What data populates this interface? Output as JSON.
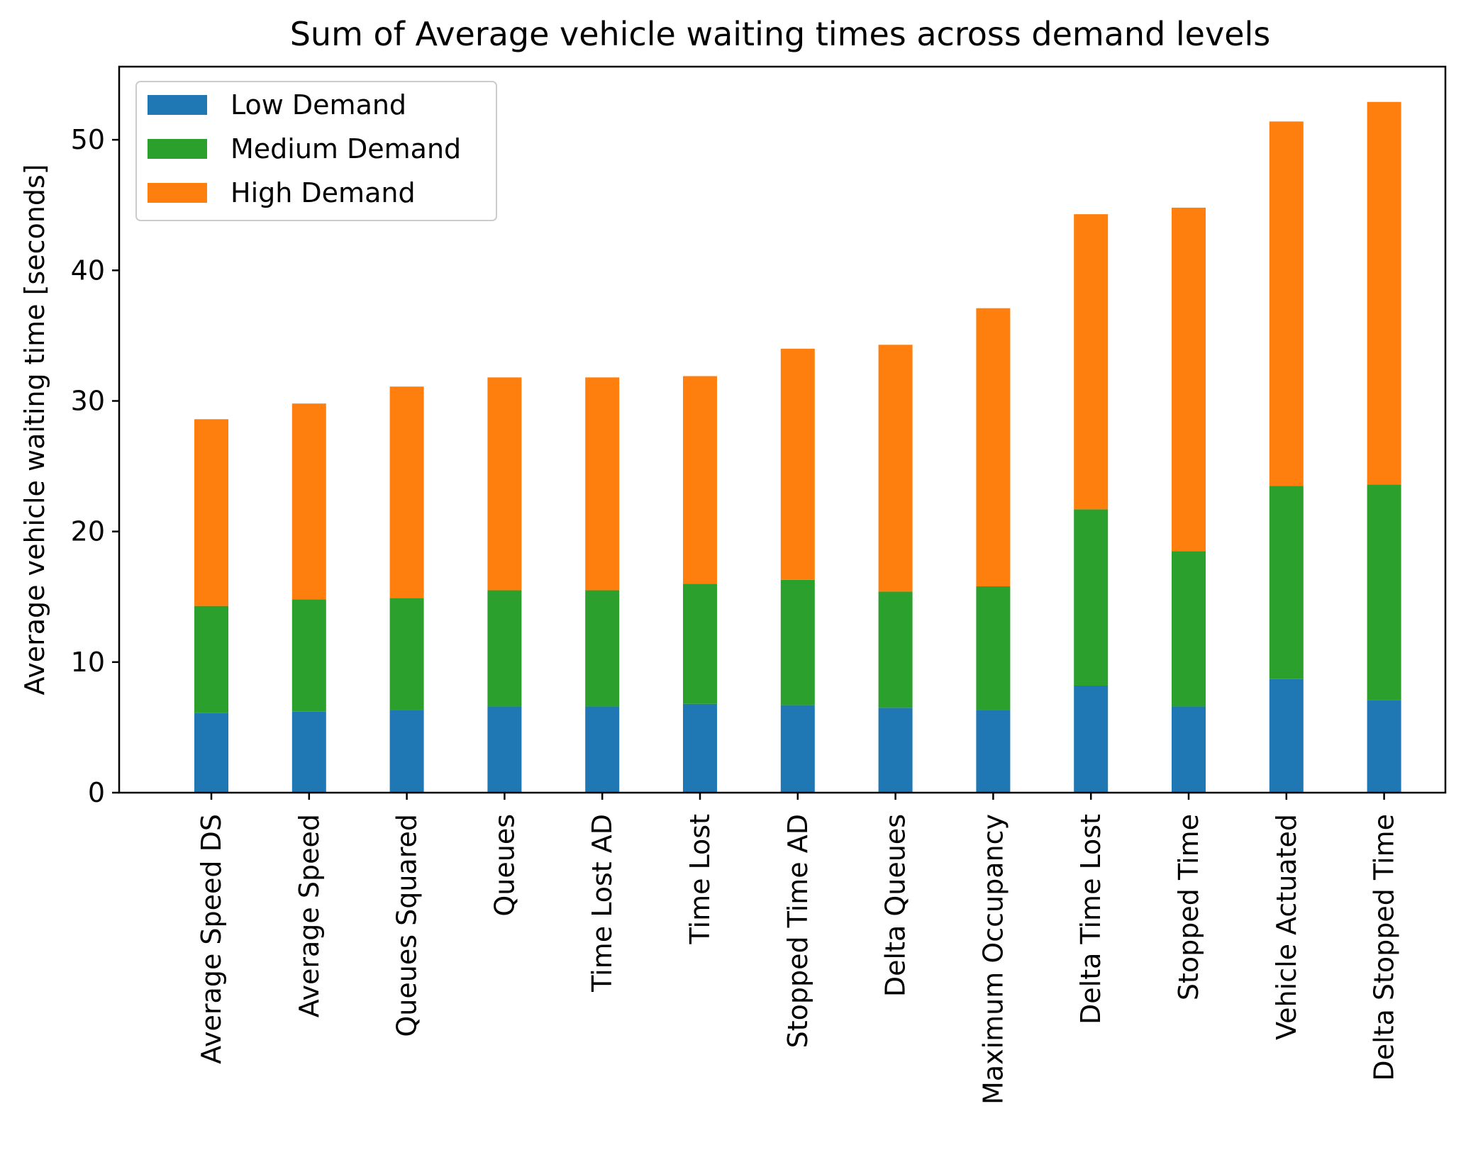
{
  "chart_data": {
    "type": "bar",
    "stacked": true,
    "title": "Sum of Average vehicle waiting times across demand levels",
    "xlabel": "",
    "ylabel": "Average vehicle waiting time [seconds]",
    "ylim": [
      0,
      55.6
    ],
    "yticks": [
      0,
      10,
      20,
      30,
      40,
      50
    ],
    "grid": false,
    "legend_position": "top-left",
    "categories": [
      "Average Speed DS",
      "Average Speed",
      "Queues Squared",
      "Queues",
      "Time Lost AD",
      "Time Lost",
      "Stopped Time AD",
      "Delta Queues",
      "Maximum Occupancy",
      "Delta Time Lost",
      "Stopped Time",
      "Vehicle Actuated",
      "Delta Stopped Time"
    ],
    "series": [
      {
        "name": "Low Demand",
        "color": "#1f77b4",
        "values": [
          6.1,
          6.2,
          6.3,
          6.6,
          6.6,
          6.8,
          6.7,
          6.5,
          6.3,
          8.2,
          6.6,
          8.7,
          7.1
        ]
      },
      {
        "name": "Medium Demand",
        "color": "#2ca02c",
        "values": [
          8.2,
          8.6,
          8.6,
          8.9,
          8.9,
          9.2,
          9.6,
          8.9,
          9.5,
          13.5,
          11.9,
          14.8,
          16.5
        ]
      },
      {
        "name": "High Demand",
        "color": "#ff7f0e",
        "values": [
          14.3,
          15.0,
          16.2,
          16.3,
          16.3,
          15.9,
          17.7,
          18.9,
          21.3,
          22.6,
          26.3,
          27.9,
          29.3
        ]
      }
    ]
  }
}
